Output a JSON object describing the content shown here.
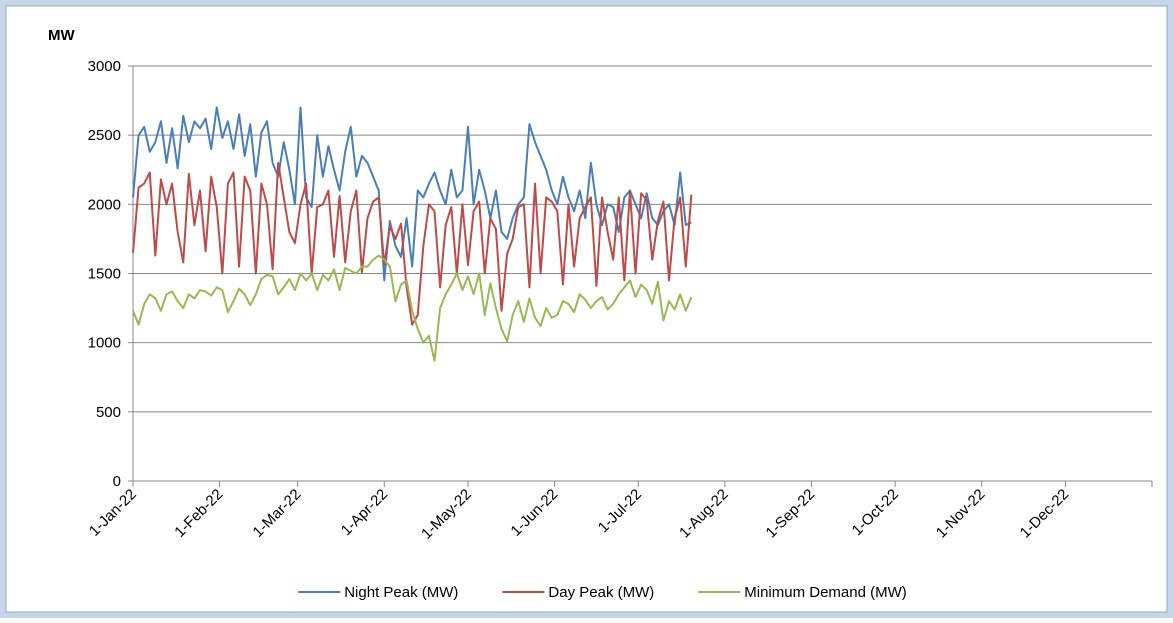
{
  "chart_data": {
    "type": "line",
    "y_label": "MW",
    "x": [
      "2022-01-01",
      "2022-01-03",
      "2022-01-05",
      "2022-01-07",
      "2022-01-09",
      "2022-01-11",
      "2022-01-13",
      "2022-01-15",
      "2022-01-17",
      "2022-01-19",
      "2022-01-21",
      "2022-01-23",
      "2022-01-25",
      "2022-01-27",
      "2022-01-29",
      "2022-01-31",
      "2022-02-02",
      "2022-02-04",
      "2022-02-06",
      "2022-02-08",
      "2022-02-10",
      "2022-02-12",
      "2022-02-14",
      "2022-02-16",
      "2022-02-18",
      "2022-02-20",
      "2022-02-22",
      "2022-02-24",
      "2022-02-26",
      "2022-02-28",
      "2022-03-02",
      "2022-03-04",
      "2022-03-06",
      "2022-03-08",
      "2022-03-10",
      "2022-03-12",
      "2022-03-14",
      "2022-03-16",
      "2022-03-18",
      "2022-03-20",
      "2022-03-22",
      "2022-03-24",
      "2022-03-26",
      "2022-03-28",
      "2022-03-30",
      "2022-04-01",
      "2022-04-03",
      "2022-04-05",
      "2022-04-07",
      "2022-04-09",
      "2022-04-11",
      "2022-04-13",
      "2022-04-15",
      "2022-04-17",
      "2022-04-19",
      "2022-04-21",
      "2022-04-23",
      "2022-04-25",
      "2022-04-27",
      "2022-04-29",
      "2022-05-01",
      "2022-05-03",
      "2022-05-05",
      "2022-05-07",
      "2022-05-09",
      "2022-05-11",
      "2022-05-13",
      "2022-05-15",
      "2022-05-17",
      "2022-05-19",
      "2022-05-21",
      "2022-05-23",
      "2022-05-25",
      "2022-05-27",
      "2022-05-29",
      "2022-05-31",
      "2022-06-02",
      "2022-06-04",
      "2022-06-06",
      "2022-06-08",
      "2022-06-10",
      "2022-06-12",
      "2022-06-14",
      "2022-06-16",
      "2022-06-18",
      "2022-06-20",
      "2022-06-22",
      "2022-06-24",
      "2022-06-26",
      "2022-06-28",
      "2022-06-30",
      "2022-07-02",
      "2022-07-04",
      "2022-07-06",
      "2022-07-08",
      "2022-07-10",
      "2022-07-12",
      "2022-07-14",
      "2022-07-16",
      "2022-07-18",
      "2022-07-20"
    ],
    "series": [
      {
        "name": "Night Peak (MW)",
        "color": "#4a7ebb",
        "values": [
          2050,
          2500,
          2560,
          2380,
          2450,
          2600,
          2300,
          2550,
          2260,
          2640,
          2450,
          2600,
          2550,
          2620,
          2400,
          2700,
          2480,
          2600,
          2400,
          2650,
          2350,
          2580,
          2200,
          2520,
          2600,
          2300,
          2200,
          2450,
          2250,
          2000,
          2700,
          2050,
          1980,
          2500,
          2200,
          2420,
          2250,
          2100,
          2380,
          2560,
          2200,
          2350,
          2300,
          2200,
          2100,
          1450,
          1880,
          1700,
          1620,
          1900,
          1550,
          2100,
          2050,
          2150,
          2230,
          2100,
          2000,
          2250,
          2050,
          2100,
          2560,
          2000,
          2250,
          2100,
          1900,
          2100,
          1800,
          1750,
          1900,
          2000,
          2050,
          2580,
          2450,
          2350,
          2250,
          2100,
          2000,
          2200,
          2050,
          1950,
          2100,
          1900,
          2300,
          2000,
          1850,
          2000,
          1980,
          1800,
          2050,
          2100,
          2000,
          1900,
          2080,
          1900,
          1850,
          1950,
          2000,
          1850,
          2230,
          1850,
          1870
        ]
      },
      {
        "name": "Day Peak (MW)",
        "color": "#be4b48",
        "values": [
          1650,
          2120,
          2150,
          2230,
          1630,
          2180,
          2000,
          2150,
          1800,
          1580,
          2220,
          1850,
          2100,
          1660,
          2200,
          1980,
          1500,
          2150,
          2230,
          1550,
          2200,
          2100,
          1500,
          2150,
          2000,
          1530,
          2300,
          2050,
          1800,
          1720,
          2000,
          2150,
          1500,
          1980,
          2000,
          2100,
          1620,
          2060,
          1580,
          1950,
          2100,
          1510,
          1900,
          2020,
          2050,
          1560,
          1840,
          1750,
          1860,
          1400,
          1130,
          1200,
          1700,
          2000,
          1950,
          1400,
          1850,
          1980,
          1500,
          2000,
          1560,
          1950,
          2020,
          1500,
          1900,
          1820,
          1230,
          1640,
          1750,
          1980,
          2000,
          1400,
          2150,
          1500,
          2050,
          2020,
          1950,
          1420,
          2000,
          1550,
          1900,
          1980,
          2050,
          1410,
          2050,
          1800,
          1600,
          2050,
          1450,
          2100,
          1500,
          2080,
          2030,
          1600,
          1880,
          2020,
          1450,
          1900,
          2050,
          1550,
          2070
        ]
      },
      {
        "name": "Minimum Demand (MW)",
        "color": "#98b954",
        "values": [
          1230,
          1130,
          1280,
          1350,
          1320,
          1230,
          1350,
          1370,
          1300,
          1250,
          1350,
          1320,
          1380,
          1370,
          1340,
          1400,
          1380,
          1220,
          1300,
          1390,
          1350,
          1270,
          1350,
          1460,
          1490,
          1480,
          1350,
          1400,
          1460,
          1380,
          1500,
          1450,
          1500,
          1380,
          1490,
          1450,
          1530,
          1380,
          1540,
          1520,
          1500,
          1550,
          1550,
          1600,
          1630,
          1600,
          1550,
          1300,
          1420,
          1450,
          1230,
          1100,
          1000,
          1050,
          870,
          1250,
          1350,
          1420,
          1500,
          1380,
          1480,
          1350,
          1500,
          1200,
          1430,
          1250,
          1100,
          1010,
          1200,
          1300,
          1150,
          1320,
          1180,
          1120,
          1250,
          1180,
          1200,
          1300,
          1280,
          1220,
          1350,
          1310,
          1250,
          1300,
          1330,
          1240,
          1280,
          1350,
          1400,
          1450,
          1330,
          1420,
          1380,
          1280,
          1440,
          1160,
          1300,
          1240,
          1350,
          1230,
          1330
        ]
      }
    ],
    "xlim": [
      "2022-01-01",
      "2023-01-01"
    ],
    "xticks": [
      {
        "value": "2022-01-01",
        "label": "1-Jan-22"
      },
      {
        "value": "2022-02-01",
        "label": "1-Feb-22"
      },
      {
        "value": "2022-03-01",
        "label": "1-Mar-22"
      },
      {
        "value": "2022-04-01",
        "label": "1-Apr-22"
      },
      {
        "value": "2022-05-01",
        "label": "1-May-22"
      },
      {
        "value": "2022-06-01",
        "label": "1-Jun-22"
      },
      {
        "value": "2022-07-01",
        "label": "1-Jul-22"
      },
      {
        "value": "2022-08-01",
        "label": "1-Aug-22"
      },
      {
        "value": "2022-09-01",
        "label": "1-Sep-22"
      },
      {
        "value": "2022-10-01",
        "label": "1-Oct-22"
      },
      {
        "value": "2022-11-01",
        "label": "1-Nov-22"
      },
      {
        "value": "2022-12-01",
        "label": "1-Dec-22"
      }
    ],
    "ylim": [
      0,
      3000
    ],
    "yticks": [
      0,
      500,
      1000,
      1500,
      2000,
      2500,
      3000
    ],
    "grid": true,
    "legend": "bottom"
  }
}
